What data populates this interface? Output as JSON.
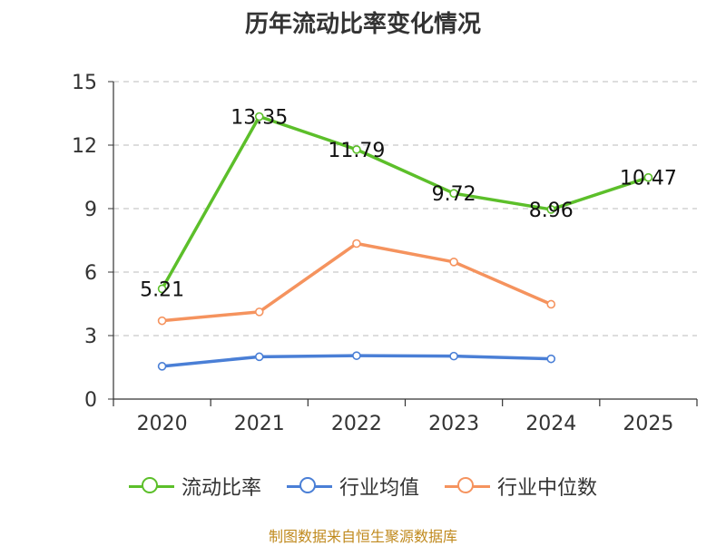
{
  "chart_data": {
    "type": "line",
    "title": "历年流动比率变化情况",
    "categories": [
      "2020",
      "2021",
      "2022",
      "2023",
      "2024",
      "2025"
    ],
    "ylim": [
      0,
      15
    ],
    "yticks": [
      0,
      3,
      6,
      9,
      12,
      15
    ],
    "grid": true,
    "legend_position": "bottom",
    "series": [
      {
        "name": "流动比率",
        "color": "#5cbf2a",
        "values": [
          5.21,
          13.35,
          11.79,
          9.72,
          8.96,
          10.47
        ],
        "labels": [
          "5.21",
          "13.35",
          "11.79",
          "9.72",
          "8.96",
          "10.47"
        ]
      },
      {
        "name": "行业均值",
        "color": "#4a7fd6",
        "values": [
          1.55,
          2.0,
          2.05,
          2.03,
          1.9,
          null
        ]
      },
      {
        "name": "行业中位数",
        "color": "#f5935e",
        "values": [
          3.7,
          4.12,
          7.35,
          6.48,
          4.48,
          null
        ]
      }
    ]
  },
  "source": "制图数据来自恒生聚源数据库"
}
